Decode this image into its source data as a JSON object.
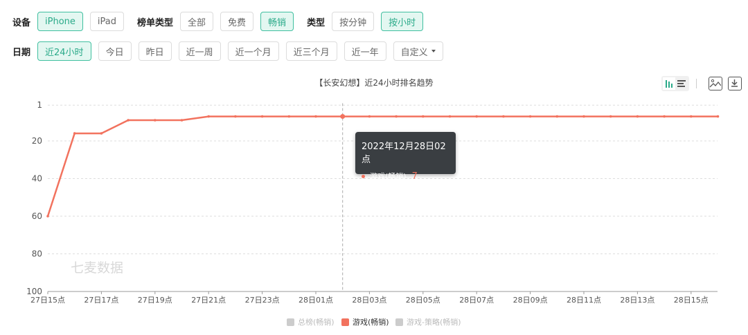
{
  "filters": {
    "device": {
      "label": "设备",
      "options": [
        "iPhone",
        "iPad"
      ],
      "active": 0
    },
    "rank_type": {
      "label": "榜单类型",
      "options": [
        "全部",
        "免费",
        "畅销"
      ],
      "active": 2
    },
    "type": {
      "label": "类型",
      "options": [
        "按分钟",
        "按小时"
      ],
      "active": 1
    },
    "date": {
      "label": "日期",
      "options": [
        "近24小时",
        "今日",
        "昨日",
        "近一周",
        "近一个月",
        "近三个月",
        "近一年"
      ],
      "active": 0,
      "custom": "自定义"
    }
  },
  "toolbar": {
    "icons": [
      "bar-chart-icon",
      "list-icon",
      "image-icon",
      "download-icon"
    ]
  },
  "watermark": "七麦数据",
  "tooltip": {
    "title": "2022年12月28日02点",
    "series": "游戏(畅销)",
    "value": "7"
  },
  "chart_data": {
    "type": "line",
    "title": "【长安幻想】近24小时排名趋势",
    "y_inverted": true,
    "ylim": [
      1,
      100
    ],
    "yticks": [
      "1",
      "20",
      "40",
      "60",
      "80",
      "100"
    ],
    "xticks": [
      "27日15点",
      "27日17点",
      "27日19点",
      "27日21点",
      "27日23点",
      "28日01点",
      "28日03点",
      "28日05点",
      "28日07点",
      "28日09点",
      "28日11点",
      "28日13点",
      "28日15点"
    ],
    "x": [
      "27日15点",
      "27日16点",
      "27日17点",
      "27日18点",
      "27日19点",
      "27日20点",
      "27日21点",
      "27日22点",
      "27日23点",
      "28日00点",
      "28日01点",
      "28日02点",
      "28日03点",
      "28日04点",
      "28日05点",
      "28日06点",
      "28日07点",
      "28日08点",
      "28日09点",
      "28日10点",
      "28日11点",
      "28日12点",
      "28日13点",
      "28日14点",
      "28日15点",
      "28日16点"
    ],
    "series": [
      {
        "name": "游戏(畅销)",
        "color": "#f2725e",
        "values": [
          60,
          16,
          16,
          9,
          9,
          9,
          7,
          7,
          7,
          7,
          7,
          7,
          7,
          7,
          7,
          7,
          7,
          7,
          7,
          7,
          7,
          7,
          7,
          7,
          7,
          7
        ]
      }
    ],
    "legend": {
      "position": "bottom",
      "items": [
        {
          "name": "总榜(畅销)",
          "active": false
        },
        {
          "name": "游戏(畅销)",
          "active": true
        },
        {
          "name": "游戏-策略(畅销)",
          "active": false
        }
      ]
    },
    "grid": true
  }
}
